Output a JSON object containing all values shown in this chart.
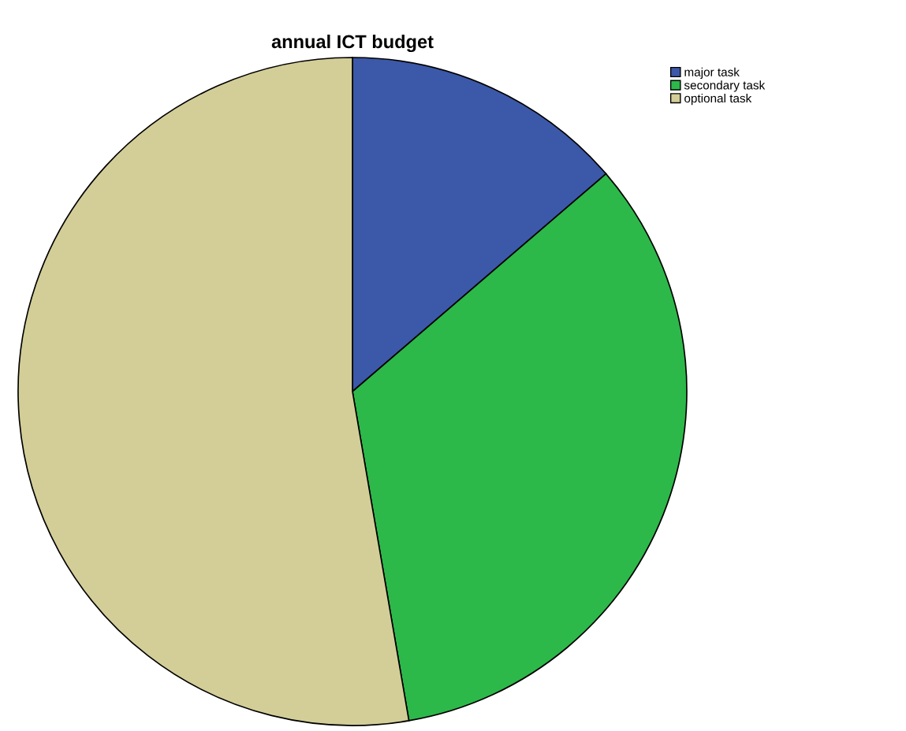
{
  "chart_data": {
    "type": "pie",
    "title": "annual ICT budget",
    "categories": [
      "major task",
      "secondary task",
      "optional task"
    ],
    "values": [
      13.7,
      33.6,
      52.7
    ],
    "colors": [
      "#3c58a8",
      "#2db84a",
      "#d3ce98"
    ],
    "legend": "top right"
  }
}
